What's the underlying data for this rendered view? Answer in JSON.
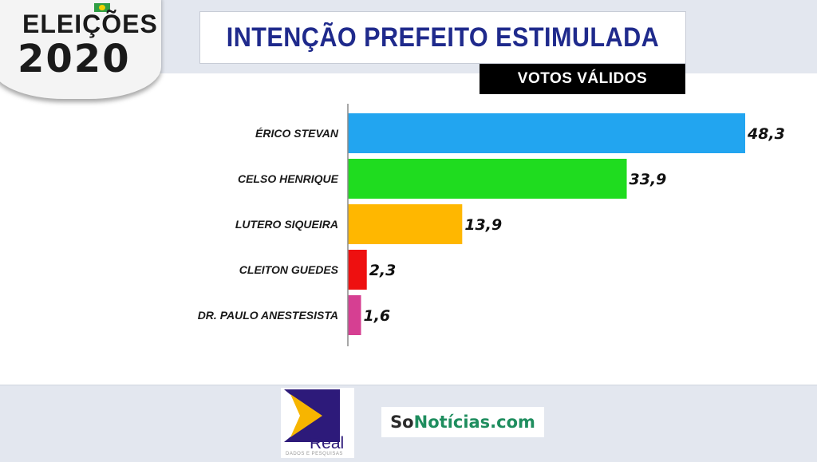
{
  "badge": {
    "line1": "ELEIÇÕES",
    "line2": "2020"
  },
  "header": {
    "title": "INTENÇÃO PREFEITO ESTIMULADA",
    "subtitle": "VOTOS VÁLIDOS"
  },
  "chart_data": {
    "type": "bar",
    "orientation": "horizontal",
    "title": "INTENÇÃO PREFEITO ESTIMULADA",
    "subtitle": "VOTOS VÁLIDOS",
    "categories": [
      "ÉRICO STEVAN",
      "CELSO HENRIQUE",
      "LUTERO SIQUEIRA",
      "CLEITON GUEDES",
      "DR. PAULO ANESTESISTA"
    ],
    "values": [
      48.3,
      33.9,
      13.9,
      2.3,
      1.6
    ],
    "value_labels": [
      "48,3",
      "33,9",
      "13,9",
      "2,3",
      "1,6"
    ],
    "colors": [
      "#22a5f0",
      "#1fdc1f",
      "#ffb700",
      "#ee1010",
      "#d63f92"
    ],
    "xlim": [
      0,
      50
    ],
    "grid": false,
    "legend": "none"
  },
  "footer": {
    "real_logo_text": "Real",
    "real_logo_sub": "DADOS E PESQUISAS",
    "sonoticias_so": "So",
    "sonoticias_rest": "Notícias.com"
  }
}
